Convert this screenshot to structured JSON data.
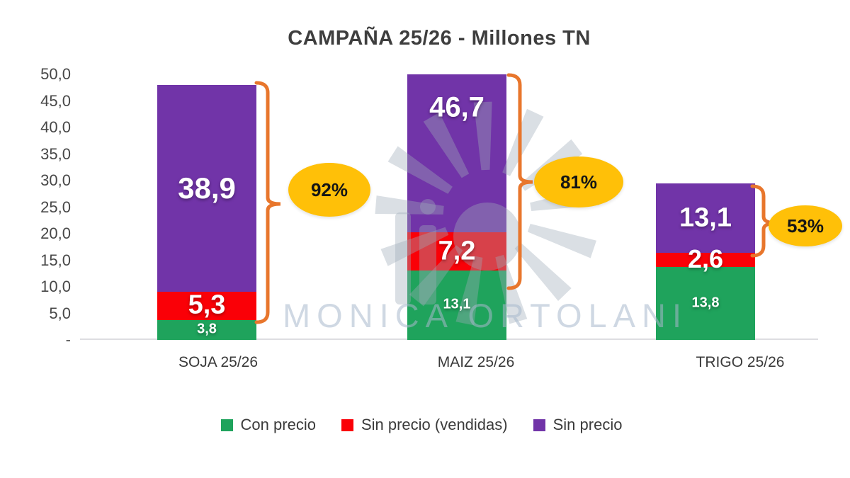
{
  "title": "CAMPAÑA 25/26 - Millones TN",
  "watermark": {
    "text": "MONICA ORTOLANI",
    "logo": "sunburst-logo"
  },
  "colors": {
    "con_precio": "#1FA35C",
    "sin_precio_vendidas": "#FA0007",
    "sin_precio": "#7134A8",
    "brace": "#E8762C",
    "oval": "#FFC008",
    "title_text": "#3e3e3e",
    "axis_text": "#474747"
  },
  "y_axis": {
    "ticks": [
      "50,0",
      "45,0",
      "40,0",
      "35,0",
      "30,0",
      "25,0",
      "20,0",
      "15,0",
      "10,0",
      "5,0",
      "-"
    ],
    "values": [
      50,
      45,
      40,
      35,
      30,
      25,
      20,
      15,
      10,
      5,
      0
    ]
  },
  "chart_data": {
    "type": "bar",
    "stacked": true,
    "title": "CAMPAÑA 25/26 - Millones TN",
    "categories": [
      "SOJA 25/26",
      "MAIZ 25/26",
      "TRIGO 25/26"
    ],
    "series": [
      {
        "name": "Con precio",
        "color": "#1FA35C",
        "values": [
          3.8,
          13.1,
          13.8
        ],
        "labels": [
          "3,8",
          "13,1",
          "13,8"
        ]
      },
      {
        "name": "Sin precio (vendidas)",
        "color": "#FA0007",
        "values": [
          5.3,
          7.2,
          2.6
        ],
        "labels": [
          "5,3",
          "7,2",
          "2,6"
        ]
      },
      {
        "name": "Sin precio",
        "color": "#7134A8",
        "values": [
          38.9,
          46.7,
          13.1
        ],
        "labels": [
          "38,9",
          "46,7",
          "13,1"
        ]
      }
    ],
    "annotations": [
      {
        "category": "SOJA 25/26",
        "percent": "92%"
      },
      {
        "category": "MAIZ 25/26",
        "percent": "81%"
      },
      {
        "category": "TRIGO 25/26",
        "percent": "53%"
      }
    ],
    "ylim": [
      0,
      50
    ],
    "grid": false,
    "legend_position": "bottom",
    "unit": "Millones TN"
  }
}
